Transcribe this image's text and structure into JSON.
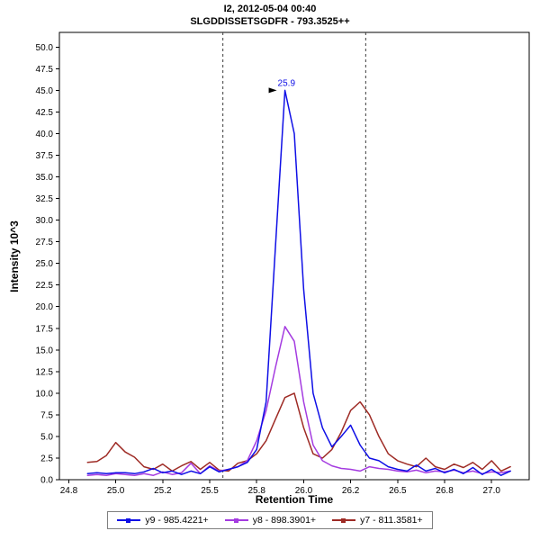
{
  "header": {
    "title": "I2, 2012-05-04 00:40",
    "subtitle": "SLGDDISSETSGDFR - 793.3525++"
  },
  "chart_data": {
    "type": "line",
    "title": "I2, 2012-05-04 00:40",
    "subtitle": "SLGDDISSETSGDFR - 793.3525++",
    "xlabel": "Retention Time",
    "ylabel": "Intensity 10^3",
    "xlim": [
      24.7,
      27.2
    ],
    "ylim": [
      0,
      51.7
    ],
    "grid": false,
    "legend_position": "bottom",
    "x_ticks": [
      {
        "v": 24.75,
        "label": "24.8"
      },
      {
        "v": 25.0,
        "label": "25.0"
      },
      {
        "v": 25.25,
        "label": "25.2"
      },
      {
        "v": 25.5,
        "label": "25.5"
      },
      {
        "v": 25.75,
        "label": "25.8"
      },
      {
        "v": 26.0,
        "label": "26.0"
      },
      {
        "v": 26.25,
        "label": "26.2"
      },
      {
        "v": 26.5,
        "label": "26.5"
      },
      {
        "v": 26.75,
        "label": "26.8"
      },
      {
        "v": 27.0,
        "label": "27.0"
      }
    ],
    "y_ticks": [
      {
        "v": 0.0,
        "label": "0.0"
      },
      {
        "v": 2.5,
        "label": "2.5"
      },
      {
        "v": 5.0,
        "label": "5.0"
      },
      {
        "v": 7.5,
        "label": "7.5"
      },
      {
        "v": 10.0,
        "label": "10.0"
      },
      {
        "v": 12.5,
        "label": "12.5"
      },
      {
        "v": 15.0,
        "label": "15.0"
      },
      {
        "v": 17.5,
        "label": "17.5"
      },
      {
        "v": 20.0,
        "label": "20.0"
      },
      {
        "v": 22.5,
        "label": "22.5"
      },
      {
        "v": 25.0,
        "label": "25.0"
      },
      {
        "v": 27.5,
        "label": "27.5"
      },
      {
        "v": 30.0,
        "label": "30.0"
      },
      {
        "v": 32.5,
        "label": "32.5"
      },
      {
        "v": 35.0,
        "label": "35.0"
      },
      {
        "v": 37.5,
        "label": "37.5"
      },
      {
        "v": 40.0,
        "label": "40.0"
      },
      {
        "v": 42.5,
        "label": "42.5"
      },
      {
        "v": 45.0,
        "label": "45.0"
      },
      {
        "v": 47.5,
        "label": "47.5"
      },
      {
        "v": 50.0,
        "label": "50.0"
      }
    ],
    "boundaries": [
      25.57,
      26.33
    ],
    "annotation": {
      "x": 25.9,
      "y": 45.0,
      "label": "25.9"
    },
    "x": [
      24.85,
      24.9,
      24.95,
      25.0,
      25.05,
      25.1,
      25.15,
      25.2,
      25.25,
      25.3,
      25.35,
      25.4,
      25.45,
      25.5,
      25.55,
      25.6,
      25.65,
      25.7,
      25.75,
      25.8,
      25.85,
      25.9,
      25.95,
      26.0,
      26.05,
      26.1,
      26.15,
      26.2,
      26.25,
      26.3,
      26.35,
      26.4,
      26.45,
      26.5,
      26.55,
      26.6,
      26.65,
      26.7,
      26.75,
      26.8,
      26.85,
      26.9,
      26.95,
      27.0,
      27.05,
      27.1
    ],
    "series": [
      {
        "name": "y9 - 985.4221+",
        "color": "#0f0fe6",
        "values": [
          0.7,
          0.8,
          0.7,
          0.8,
          0.8,
          0.7,
          0.9,
          1.3,
          0.8,
          1.0,
          0.6,
          1.0,
          0.7,
          1.5,
          0.9,
          1.2,
          1.5,
          2.0,
          3.5,
          9.0,
          27.0,
          45.0,
          40.0,
          22.0,
          10.0,
          6.0,
          3.8,
          5.0,
          6.3,
          4.0,
          2.5,
          2.2,
          1.5,
          1.2,
          1.0,
          1.7,
          1.0,
          1.3,
          0.8,
          1.2,
          0.7,
          1.4,
          0.6,
          1.2,
          0.5,
          1.0
        ]
      },
      {
        "name": "y8 - 898.3901+",
        "color": "#a43be0",
        "values": [
          0.5,
          0.6,
          0.5,
          0.7,
          0.6,
          0.5,
          0.7,
          0.5,
          0.9,
          0.6,
          0.8,
          1.9,
          0.7,
          1.6,
          1.0,
          1.2,
          1.5,
          2.2,
          4.5,
          8.0,
          13.0,
          17.7,
          16.0,
          9.0,
          4.0,
          2.2,
          1.6,
          1.3,
          1.2,
          1.0,
          1.5,
          1.3,
          1.2,
          1.0,
          0.9,
          1.1,
          0.8,
          1.0,
          0.9,
          1.1,
          0.8,
          1.0,
          0.7,
          0.9,
          0.8,
          1.0
        ]
      },
      {
        "name": "y7 - 811.3581+",
        "color": "#9e2b25",
        "values": [
          2.0,
          2.1,
          2.8,
          4.3,
          3.2,
          2.6,
          1.5,
          1.2,
          1.8,
          1.0,
          1.6,
          2.1,
          1.2,
          2.0,
          1.1,
          1.0,
          1.9,
          2.2,
          3.0,
          4.5,
          7.0,
          9.5,
          10.0,
          6.0,
          3.0,
          2.5,
          3.5,
          5.5,
          8.0,
          9.0,
          7.5,
          5.0,
          3.0,
          2.2,
          1.8,
          1.5,
          2.5,
          1.5,
          1.2,
          1.8,
          1.4,
          2.0,
          1.2,
          2.2,
          1.0,
          1.5
        ]
      }
    ]
  }
}
